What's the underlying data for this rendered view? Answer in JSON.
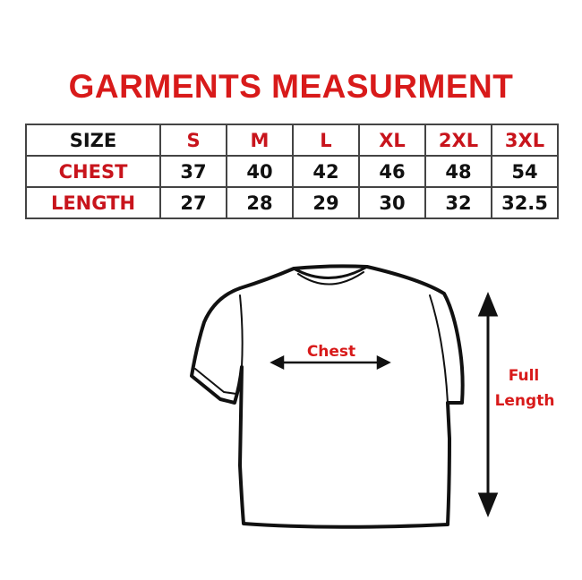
{
  "title": "GARMENTS MEASURMENT",
  "table": {
    "header": {
      "label": "SIZE",
      "sizes": [
        "S",
        "M",
        "L",
        "XL",
        "2XL",
        "3XL"
      ]
    },
    "rows": [
      {
        "label": "CHEST",
        "values": [
          "37",
          "40",
          "42",
          "46",
          "48",
          "54"
        ]
      },
      {
        "label": "LENGTH",
        "values": [
          "27",
          "28",
          "29",
          "30",
          "32",
          "32.5"
        ]
      }
    ]
  },
  "diagram": {
    "chest_label": "Chest",
    "length_label_line1": "Full",
    "length_label_line2": "Length"
  },
  "colors": {
    "accent": "#d81a1a",
    "text": "#111111"
  }
}
